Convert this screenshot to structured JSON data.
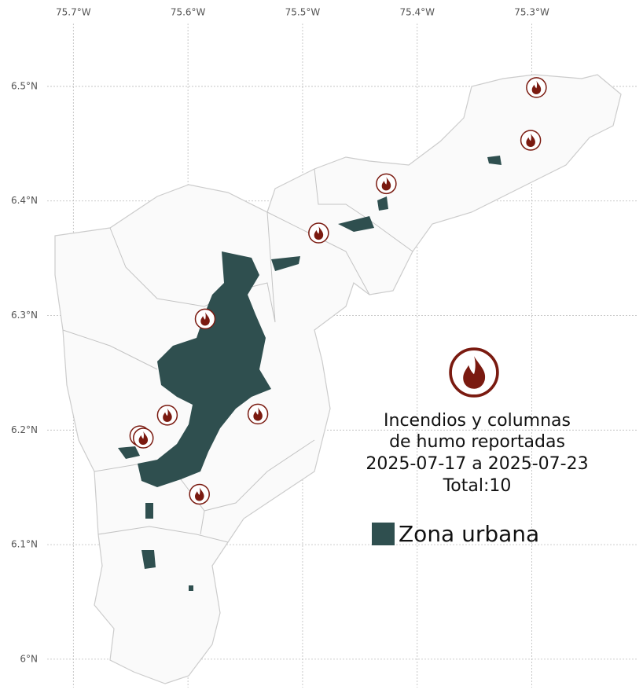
{
  "map": {
    "xlim": [
      -75.764,
      -75.203
    ],
    "ylim": [
      5.967,
      6.5754
    ],
    "xticks": [
      {
        "value": -75.7,
        "label": "75.7°W"
      },
      {
        "value": -75.6,
        "label": "75.6°W"
      },
      {
        "value": -75.5,
        "label": "75.5°W"
      },
      {
        "value": -75.4,
        "label": "75.4°W"
      },
      {
        "value": -75.3,
        "label": "75.3°W"
      }
    ],
    "yticks": [
      {
        "value": 6.5,
        "label": "6.5°N"
      },
      {
        "value": 6.4,
        "label": "6.4°N"
      },
      {
        "value": 6.3,
        "label": "6.3°N"
      },
      {
        "value": 6.2,
        "label": "6.2°N"
      },
      {
        "value": 6.1,
        "label": "6.1°N"
      },
      {
        "value": 6,
        "label": "6°N"
      }
    ],
    "title_lines": [
      "Incendios y columnas",
      "de humo reportadas",
      "2025-07-17 a 2025-07-23",
      "Total:10"
    ],
    "legend": {
      "label": "Zona urbana",
      "color": "#2f4f4f"
    },
    "fire_color": "#7a1a10",
    "fires": [
      {
        "lon": -75.296,
        "lat": 6.499
      },
      {
        "lon": -75.301,
        "lat": 6.453
      },
      {
        "lon": -75.427,
        "lat": 6.415
      },
      {
        "lon": -75.486,
        "lat": 6.372
      },
      {
        "lon": -75.585,
        "lat": 6.297
      },
      {
        "lon": -75.618,
        "lat": 6.213
      },
      {
        "lon": -75.539,
        "lat": 6.214
      },
      {
        "lon": -75.642,
        "lat": 6.195
      },
      {
        "lon": -75.639,
        "lat": 6.193
      },
      {
        "lon": -75.59,
        "lat": 6.144
      }
    ]
  }
}
